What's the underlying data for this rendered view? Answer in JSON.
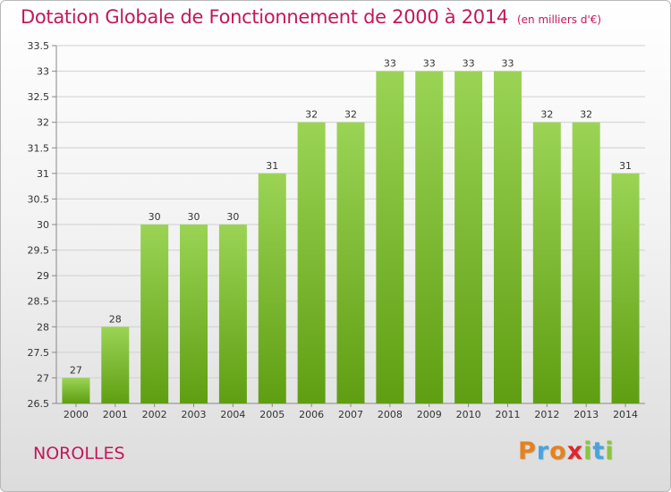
{
  "title": "Dotation Globale de Fonctionnement de 2000 à 2014",
  "subtitle": "(en milliers d'€)",
  "place": "NOROLLES",
  "logo": {
    "letters": [
      "P",
      "r",
      "o",
      "x",
      "i",
      "t",
      "i"
    ],
    "colors": [
      "#e6821e",
      "#4aa3df",
      "#e6821e",
      "#e0262c",
      "#8bc53f",
      "#4aa3df",
      "#8bc53f"
    ]
  },
  "colors": {
    "accent": "#c2185b",
    "bar_top": "#9bd455",
    "bar_bottom": "#5f9e12",
    "grid": "#d0d0d0"
  },
  "chart_data": {
    "type": "bar",
    "categories": [
      "2000",
      "2001",
      "2002",
      "2003",
      "2004",
      "2005",
      "2006",
      "2007",
      "2008",
      "2009",
      "2010",
      "2011",
      "2012",
      "2013",
      "2014"
    ],
    "values": [
      27,
      28,
      30,
      30,
      30,
      31,
      32,
      32,
      33,
      33,
      33,
      33,
      32,
      32,
      31
    ],
    "data_labels": [
      "27",
      "28",
      "30",
      "30",
      "30",
      "31",
      "32",
      "32",
      "33",
      "33",
      "33",
      "33",
      "32",
      "32",
      "31"
    ],
    "ylim": [
      26.5,
      33.5
    ],
    "yticks": [
      "26.5",
      "27",
      "27.5",
      "28",
      "28.5",
      "29",
      "29.5",
      "30",
      "30.5",
      "31",
      "31.5",
      "32",
      "32.5",
      "33",
      "33.5"
    ],
    "grid": true,
    "xlabel": "",
    "ylabel": ""
  }
}
